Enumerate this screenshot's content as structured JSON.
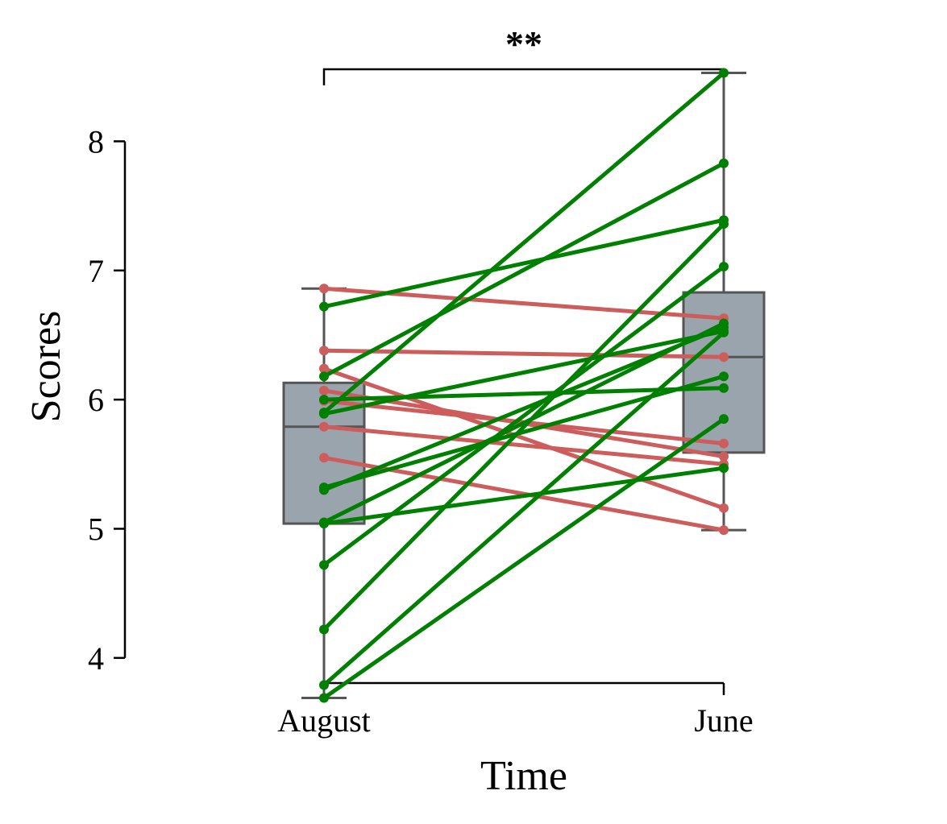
{
  "chart_data": {
    "type": "box-paired-lines",
    "title": "",
    "xlabel": "Time",
    "ylabel": "Scores",
    "categories": [
      "August",
      "June"
    ],
    "yticks": [
      4,
      5,
      6,
      7,
      8
    ],
    "ylim": [
      3.45,
      8.72
    ],
    "significance": "**",
    "colors": {
      "increase": "#008000",
      "decrease": "#cd5c5c",
      "box_fill": "#9aa4ad",
      "box_edge": "#555555",
      "axis": "#000000"
    },
    "boxes": [
      {
        "category": "August",
        "min": 3.69,
        "q1": 5.04,
        "median": 5.79,
        "q3": 6.13,
        "max": 6.86
      },
      {
        "category": "June",
        "min": 4.99,
        "q1": 5.59,
        "median": 6.33,
        "q3": 6.83,
        "max": 8.53
      }
    ],
    "pairs": [
      {
        "august": 6.86,
        "june": 6.63
      },
      {
        "august": 6.38,
        "june": 6.33
      },
      {
        "august": 6.24,
        "june": 5.16
      },
      {
        "august": 6.07,
        "june": 5.56
      },
      {
        "august": 5.99,
        "june": 5.66
      },
      {
        "august": 5.79,
        "june": 5.5
      },
      {
        "august": 5.55,
        "june": 4.99
      },
      {
        "august": 6.72,
        "june": 7.39
      },
      {
        "august": 6.18,
        "june": 7.83
      },
      {
        "august": 5.9,
        "june": 8.53
      },
      {
        "august": 5.89,
        "june": 6.53
      },
      {
        "august": 6.0,
        "june": 6.09
      },
      {
        "august": 5.32,
        "june": 6.18
      },
      {
        "august": 5.3,
        "june": 6.56
      },
      {
        "august": 5.05,
        "june": 6.59
      },
      {
        "august": 5.04,
        "june": 5.47
      },
      {
        "august": 4.72,
        "june": 7.03
      },
      {
        "august": 4.22,
        "june": 7.36
      },
      {
        "august": 3.79,
        "june": 6.52
      },
      {
        "august": 3.69,
        "june": 5.85
      }
    ]
  }
}
